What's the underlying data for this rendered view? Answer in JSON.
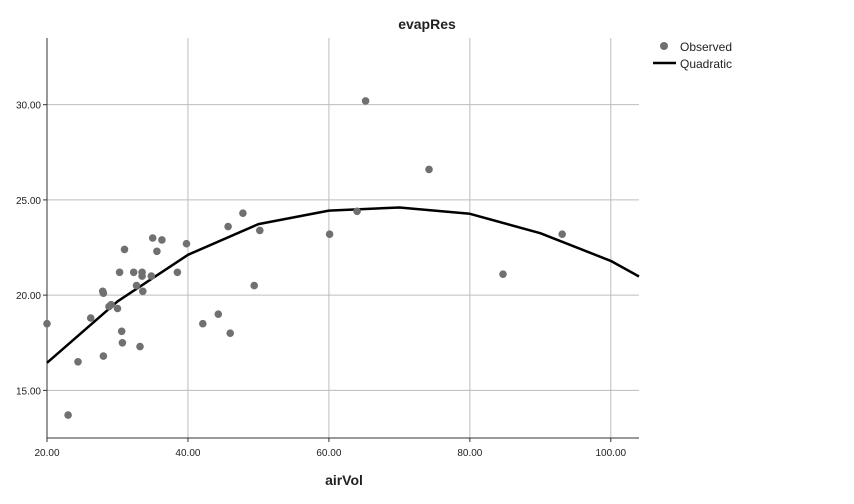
{
  "chart_data": {
    "type": "scatter",
    "title": "evapRes",
    "xlabel": "airVol",
    "ylabel": "",
    "xlim": [
      20,
      104
    ],
    "ylim": [
      12.5,
      33.5
    ],
    "x_ticks": [
      "20.00",
      "40.00",
      "60.00",
      "80.00",
      "100.00"
    ],
    "y_ticks": [
      "15.00",
      "20.00",
      "25.00",
      "30.00"
    ],
    "grid": true,
    "legend_position": "top-right",
    "colors": {
      "observed": "#707070",
      "quadratic": "#000000",
      "grid": "#bdbdbd",
      "axis": "#333333"
    },
    "series": [
      {
        "name": "Observed",
        "kind": "points",
        "points": [
          [
            20.0,
            18.5
          ],
          [
            23.0,
            13.7
          ],
          [
            24.4,
            16.5
          ],
          [
            26.2,
            18.8
          ],
          [
            27.9,
            20.2
          ],
          [
            28.0,
            20.1
          ],
          [
            28.0,
            16.8
          ],
          [
            28.8,
            19.4
          ],
          [
            29.1,
            19.5
          ],
          [
            30.0,
            19.3
          ],
          [
            30.3,
            21.2
          ],
          [
            30.6,
            18.1
          ],
          [
            30.7,
            17.5
          ],
          [
            31.0,
            22.4
          ],
          [
            32.3,
            21.2
          ],
          [
            32.7,
            20.5
          ],
          [
            33.2,
            17.3
          ],
          [
            33.5,
            21.2
          ],
          [
            33.5,
            21.0
          ],
          [
            33.6,
            20.2
          ],
          [
            34.8,
            21.0
          ],
          [
            35.0,
            23.0
          ],
          [
            35.6,
            22.3
          ],
          [
            36.3,
            22.9
          ],
          [
            38.5,
            21.2
          ],
          [
            39.8,
            22.7
          ],
          [
            42.1,
            18.5
          ],
          [
            44.3,
            19.0
          ],
          [
            45.7,
            23.6
          ],
          [
            46.0,
            18.0
          ],
          [
            47.8,
            24.3
          ],
          [
            49.4,
            20.5
          ],
          [
            50.2,
            23.4
          ],
          [
            60.1,
            23.2
          ],
          [
            64.0,
            24.4
          ],
          [
            65.2,
            30.2
          ],
          [
            74.2,
            26.6
          ],
          [
            84.7,
            21.1
          ],
          [
            93.1,
            23.2
          ]
        ]
      },
      {
        "name": "Quadratic",
        "kind": "curve",
        "points": [
          [
            20,
            16.45
          ],
          [
            30,
            19.67
          ],
          [
            40,
            22.12
          ],
          [
            50,
            23.73
          ],
          [
            60,
            24.44
          ],
          [
            70,
            24.6
          ],
          [
            80,
            24.27
          ],
          [
            90,
            23.25
          ],
          [
            100,
            21.8
          ],
          [
            104,
            20.98
          ]
        ]
      }
    ]
  }
}
